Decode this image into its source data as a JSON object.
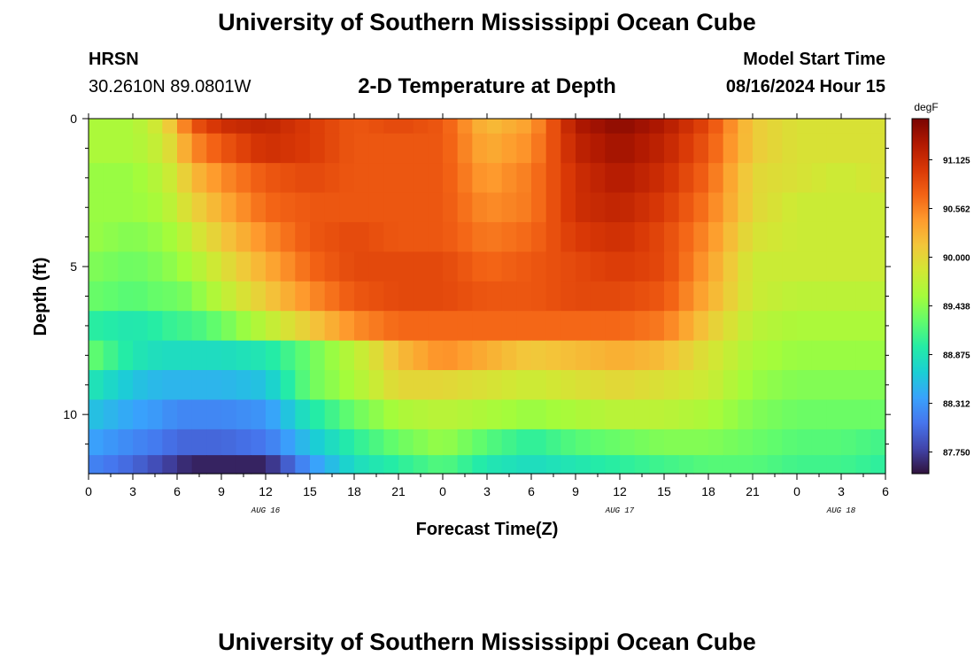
{
  "header": {
    "title": "University of Southern Mississippi Ocean Cube",
    "station": "HRSN",
    "coords": "30.2610N  89.0801W",
    "plot_title": "2-D Temperature at Depth",
    "start_label": "Model Start Time",
    "start_time": "08/16/2024 Hour 15"
  },
  "footer": {
    "title": "University of Southern Mississippi Ocean Cube"
  },
  "chart_data": {
    "type": "heatmap",
    "title": "2-D Temperature at Depth",
    "xlabel": "Forecast Time(Z)",
    "ylabel": "Depth (ft)",
    "x_range_hours": [
      0,
      54
    ],
    "y_range": [
      0,
      12
    ],
    "x_tick_labels": [
      "0",
      "3",
      "6",
      "9",
      "12",
      "15",
      "18",
      "21",
      "0",
      "3",
      "6",
      "9",
      "12",
      "15",
      "18",
      "21",
      "0",
      "3",
      "6"
    ],
    "y_tick_labels": [
      "0",
      "5",
      "10"
    ],
    "date_labels": [
      {
        "text": "AUG 16",
        "hour": 12
      },
      {
        "text": "AUG 17",
        "hour": 36
      },
      {
        "text": "AUG 18",
        "hour": 51
      }
    ],
    "colorbar": {
      "unit": "degF",
      "min": 87.5,
      "max": 91.6,
      "labels": [
        "91.125",
        "90.562",
        "90.000",
        "89.438",
        "88.875",
        "88.312",
        "87.750"
      ],
      "colors": [
        "#30123b",
        "#4145ab",
        "#4675ed",
        "#39a2fc",
        "#1bcfd4",
        "#24eca6",
        "#61fc6c",
        "#a4fc3b",
        "#d1e834",
        "#f3c63a",
        "#fe9b2d",
        "#f36315",
        "#d93806",
        "#b11901",
        "#7a0403"
      ]
    },
    "depth_rows": [
      0,
      1,
      2,
      3,
      4,
      5,
      6,
      7,
      8,
      9,
      10,
      11,
      11.75
    ],
    "time_knots_hours": [
      0,
      3,
      5,
      6,
      7,
      9,
      12,
      15,
      18,
      21,
      24,
      27,
      30,
      33,
      36,
      39,
      42,
      45,
      48,
      51,
      54
    ],
    "values": [
      [
        89.6,
        89.6,
        89.9,
        90.3,
        90.8,
        91.1,
        91.2,
        91.0,
        90.8,
        90.9,
        90.8,
        90.2,
        90.4,
        91.3,
        91.5,
        91.3,
        90.9,
        90.1,
        89.9,
        89.9,
        89.9
      ],
      [
        89.6,
        89.6,
        89.8,
        90.1,
        90.5,
        90.8,
        91.1,
        91.0,
        90.8,
        90.8,
        90.8,
        90.3,
        90.5,
        91.2,
        91.4,
        91.2,
        90.8,
        90.1,
        89.9,
        89.9,
        89.9
      ],
      [
        89.5,
        89.5,
        89.7,
        89.9,
        90.2,
        90.5,
        90.8,
        90.9,
        90.8,
        90.8,
        90.8,
        90.4,
        90.6,
        91.1,
        91.3,
        91.1,
        90.7,
        90.0,
        89.9,
        89.8,
        89.9
      ],
      [
        89.5,
        89.5,
        89.6,
        89.8,
        90.0,
        90.3,
        90.7,
        90.8,
        90.8,
        90.8,
        90.8,
        90.5,
        90.6,
        91.1,
        91.2,
        91.0,
        90.6,
        90.0,
        89.8,
        89.8,
        89.8
      ],
      [
        89.5,
        89.4,
        89.5,
        89.6,
        89.8,
        90.1,
        90.5,
        90.8,
        90.9,
        90.8,
        90.8,
        90.6,
        90.7,
        91.0,
        91.1,
        90.9,
        90.5,
        89.9,
        89.8,
        89.8,
        89.8
      ],
      [
        89.4,
        89.3,
        89.4,
        89.5,
        89.6,
        89.9,
        90.3,
        90.7,
        90.9,
        90.9,
        90.9,
        90.7,
        90.8,
        90.9,
        91.0,
        90.9,
        90.4,
        89.8,
        89.8,
        89.8,
        89.8
      ],
      [
        89.3,
        89.2,
        89.3,
        89.3,
        89.4,
        89.7,
        90.1,
        90.5,
        90.8,
        90.9,
        90.9,
        90.8,
        90.8,
        90.9,
        90.9,
        90.8,
        90.3,
        89.8,
        89.7,
        89.7,
        89.7
      ],
      [
        89.0,
        88.9,
        89.0,
        89.1,
        89.1,
        89.3,
        89.7,
        90.1,
        90.5,
        90.7,
        90.7,
        90.7,
        90.7,
        90.7,
        90.7,
        90.6,
        90.1,
        89.7,
        89.6,
        89.6,
        89.6
      ],
      [
        89.3,
        88.9,
        88.8,
        88.8,
        88.8,
        88.8,
        88.9,
        89.3,
        89.7,
        90.2,
        90.5,
        90.3,
        90.1,
        90.2,
        90.3,
        90.2,
        89.9,
        89.6,
        89.5,
        89.5,
        89.5
      ],
      [
        88.9,
        88.6,
        88.5,
        88.5,
        88.5,
        88.5,
        88.6,
        89.3,
        89.6,
        90.0,
        90.0,
        89.9,
        89.8,
        89.9,
        90.0,
        89.9,
        89.8,
        89.5,
        89.4,
        89.4,
        89.4
      ],
      [
        88.6,
        88.4,
        88.3,
        88.2,
        88.2,
        88.2,
        88.3,
        88.9,
        89.3,
        89.6,
        89.7,
        89.6,
        89.5,
        89.6,
        89.7,
        89.7,
        89.6,
        89.4,
        89.3,
        89.3,
        89.3
      ],
      [
        88.4,
        88.2,
        88.1,
        88.0,
        88.0,
        88.0,
        88.1,
        88.6,
        89.0,
        89.3,
        89.5,
        89.2,
        89.0,
        89.2,
        89.3,
        89.4,
        89.4,
        89.3,
        89.2,
        89.2,
        89.1
      ],
      [
        88.2,
        88.0,
        87.8,
        87.7,
        87.6,
        87.6,
        87.6,
        88.3,
        88.8,
        89.0,
        89.2,
        88.9,
        88.8,
        88.9,
        89.0,
        89.1,
        89.2,
        89.2,
        89.1,
        89.1,
        89.0
      ]
    ]
  }
}
